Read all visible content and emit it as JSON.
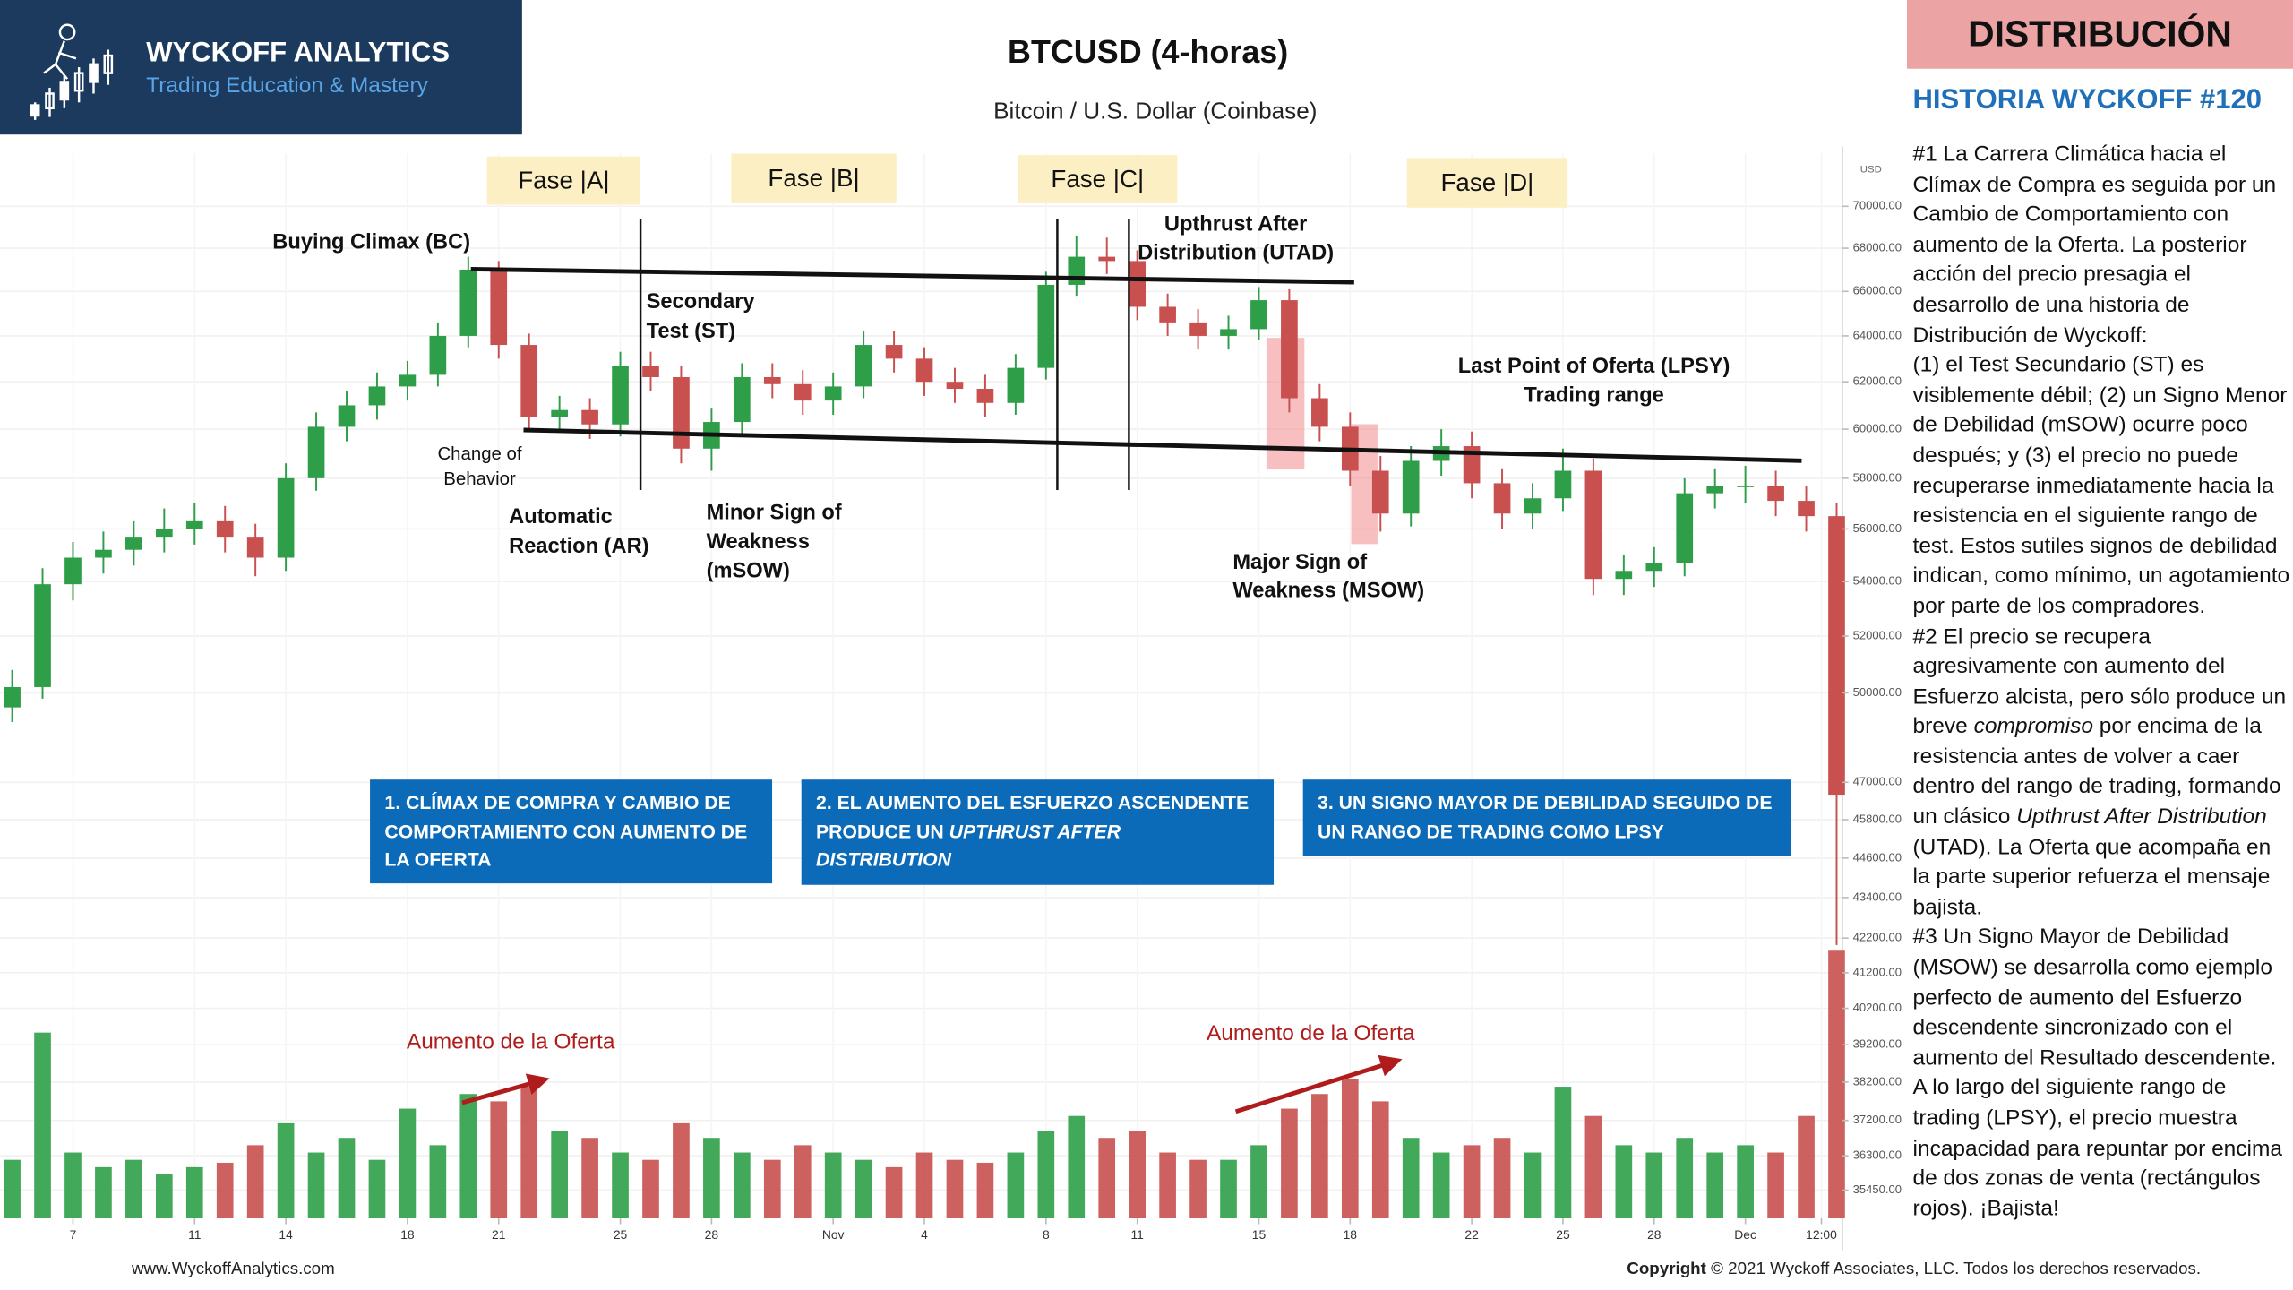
{
  "header": {
    "brand": "WYCKOFF ANALYTICS",
    "tagline": "Trading Education & Mastery",
    "title": "BTCUSD (4-horas)",
    "subtitle": "Bitcoin / U.S. Dollar (Coinbase)",
    "badge": "DISTRIBUCIÓN",
    "story_title": "HISTORIA WYCKOFF #120"
  },
  "chart_data": {
    "type": "candlestick",
    "x": [
      5,
      6,
      7,
      8,
      9,
      10,
      11,
      12,
      13,
      14,
      15,
      16,
      17,
      18,
      19,
      20,
      21,
      22,
      23,
      24,
      25,
      26,
      27,
      28,
      29,
      30,
      31,
      32,
      33,
      34,
      35,
      36,
      37,
      38,
      39,
      40,
      41,
      42,
      43,
      44,
      45,
      46,
      47,
      48,
      49,
      50,
      51,
      52,
      53,
      54,
      55,
      56,
      57,
      58,
      59,
      60,
      61,
      62,
      63,
      64,
      65
    ],
    "open": [
      49500,
      50200,
      53900,
      54900,
      55200,
      55700,
      56000,
      56300,
      55700,
      54900,
      58000,
      60100,
      61000,
      61800,
      62300,
      64000,
      67000,
      63600,
      60500,
      60800,
      60200,
      62700,
      62200,
      59200,
      60300,
      62200,
      61900,
      61200,
      61800,
      63600,
      63000,
      62000,
      61700,
      61100,
      62600,
      66300,
      67600,
      67400,
      65300,
      64600,
      64000,
      64300,
      65600,
      61300,
      60100,
      58300,
      56600,
      58700,
      59300,
      57800,
      56600,
      57200,
      58300,
      54100,
      54400,
      54700,
      57400,
      57700,
      57700,
      57100,
      56500
    ],
    "high": [
      50800,
      54500,
      55500,
      55900,
      56300,
      56800,
      57000,
      56900,
      56200,
      58600,
      60700,
      61600,
      62400,
      62900,
      64600,
      67600,
      67400,
      64100,
      61400,
      61300,
      63300,
      63300,
      62700,
      60900,
      62800,
      62800,
      62500,
      62400,
      64200,
      64200,
      63500,
      62600,
      62300,
      63200,
      66900,
      68600,
      68500,
      67900,
      65900,
      65200,
      64900,
      66200,
      66100,
      61900,
      60700,
      58900,
      59300,
      60000,
      59900,
      58400,
      57800,
      59200,
      58800,
      55000,
      55300,
      58000,
      58400,
      58500,
      58300,
      57700,
      57000
    ],
    "low": [
      49000,
      49800,
      53300,
      54300,
      54600,
      55100,
      55400,
      55100,
      54200,
      54400,
      57500,
      59500,
      60400,
      61200,
      61800,
      63500,
      63000,
      59900,
      59900,
      59600,
      59700,
      61600,
      58600,
      58300,
      59800,
      61300,
      60600,
      60600,
      61300,
      62400,
      61400,
      61100,
      60500,
      60600,
      62100,
      65800,
      66800,
      64700,
      64000,
      63400,
      63400,
      63800,
      60700,
      59500,
      57700,
      55900,
      56100,
      58100,
      57200,
      56000,
      56000,
      56700,
      53500,
      53500,
      53800,
      54200,
      56800,
      57000,
      56500,
      55900,
      42000
    ],
    "close": [
      50200,
      53900,
      54900,
      55200,
      55700,
      56000,
      56300,
      55700,
      54900,
      58000,
      60100,
      61000,
      61800,
      62300,
      64000,
      67000,
      63600,
      60500,
      60800,
      60200,
      62700,
      62200,
      59200,
      60300,
      62200,
      61900,
      61200,
      61800,
      63600,
      63000,
      62000,
      61700,
      61100,
      62600,
      66300,
      67600,
      67400,
      65300,
      64600,
      64000,
      64300,
      65600,
      61300,
      60100,
      58300,
      56600,
      58700,
      59300,
      57800,
      56600,
      57200,
      58300,
      54100,
      54400,
      54700,
      57400,
      57700,
      57700,
      57100,
      56500,
      46600
    ],
    "volume": [
      40,
      127,
      45,
      35,
      40,
      30,
      35,
      38,
      50,
      65,
      45,
      55,
      40,
      75,
      50,
      85,
      80,
      90,
      60,
      55,
      45,
      40,
      65,
      55,
      45,
      40,
      50,
      45,
      40,
      35,
      45,
      40,
      38,
      45,
      60,
      70,
      55,
      60,
      45,
      40,
      40,
      50,
      75,
      85,
      95,
      80,
      55,
      45,
      50,
      55,
      45,
      90,
      70,
      50,
      45,
      55,
      45,
      50,
      45,
      70,
      183
    ],
    "up_color": "#2e9e48",
    "down_color": "#c8504e",
    "yscale": "log",
    "y_unit": "USD",
    "ylim": [
      34800,
      72600
    ],
    "yticks": [
      {
        "value": 70000,
        "label": "70000.00"
      },
      {
        "value": 68000,
        "label": "68000.00"
      },
      {
        "value": 66000,
        "label": "66000.00"
      },
      {
        "value": 64000,
        "label": "64000.00"
      },
      {
        "value": 62000,
        "label": "62000.00"
      },
      {
        "value": 60000,
        "label": "60000.00"
      },
      {
        "value": 58000,
        "label": "58000.00"
      },
      {
        "value": 56000,
        "label": "56000.00"
      },
      {
        "value": 54000,
        "label": "54000.00"
      },
      {
        "value": 52000,
        "label": "52000.00"
      },
      {
        "value": 50000,
        "label": "50000.00"
      },
      {
        "value": 47000,
        "label": "47000.00"
      },
      {
        "value": 45800,
        "label": "45800.00"
      },
      {
        "value": 44600,
        "label": "44600.00"
      },
      {
        "value": 43400,
        "label": "43400.00"
      },
      {
        "value": 42200,
        "label": "42200.00"
      },
      {
        "value": 41200,
        "label": "41200.00"
      },
      {
        "value": 40200,
        "label": "40200.00"
      },
      {
        "value": 39200,
        "label": "39200.00"
      },
      {
        "value": 38200,
        "label": "38200.00"
      },
      {
        "value": 37200,
        "label": "37200.00"
      },
      {
        "value": 36300,
        "label": "36300.00"
      },
      {
        "value": 35450,
        "label": "35450.00"
      }
    ],
    "grid": true,
    "xlim": [
      4.6,
      65.1
    ],
    "xticks": [
      7,
      11,
      14,
      18,
      21,
      25,
      28,
      {
        "value": 32,
        "label": "Nov"
      },
      {
        "value": 35,
        "label": "4"
      },
      {
        "value": 39,
        "label": "8"
      },
      {
        "value": 42,
        "label": "11"
      },
      {
        "value": 46,
        "label": "15"
      },
      {
        "value": 49,
        "label": "18"
      },
      {
        "value": 53,
        "label": "22"
      },
      {
        "value": 56,
        "label": "25"
      },
      {
        "value": 59,
        "label": "28"
      },
      {
        "value": 62,
        "label": "Dec"
      },
      {
        "value": 64.5,
        "label": "12:00"
      }
    ],
    "phases": [
      "Fase |A|",
      "Fase |B|",
      "Fase |C|",
      "Fase |D|"
    ],
    "annotations": [
      [
        "Buying Climax (BC)"
      ],
      [
        "Change of",
        "Behavior"
      ],
      [
        "Secondary",
        "Test (ST)"
      ],
      [
        "Automatic",
        "Reaction (AR)"
      ],
      [
        "Minor Sign of",
        "Weakness",
        "(mSOW)"
      ],
      [
        "Upthrust After",
        "Distribution (UTAD)"
      ],
      [
        "Last Point of Oferta (LPSY)",
        "Trading range"
      ],
      [
        "Major Sign of",
        "Weakness (MSOW)"
      ]
    ],
    "notes": [
      [
        {
          "text": "1. CLÍMAX DE COMPRA Y CAMBIO DE COMPORTAMIENTO CON AUMENTO DE LA OFERTA"
        }
      ],
      [
        {
          "text": "2. EL AUMENTO DEL ESFUERZO ASCENDENTE PRODUCE UN "
        },
        {
          "text": "UPTHRUST AFTER DISTRIBUTION",
          "italic": true
        }
      ],
      [
        {
          "text": "3. UN SIGNO MAYOR DE DEBILIDAD SEGUIDO DE UN RANGO DE TRADING COMO LPSY"
        }
      ]
    ],
    "volume_notes": [
      "Aumento de la Oferta",
      "Aumento de la Oferta"
    ]
  },
  "story": {
    "paragraphs": [
      [
        {
          "text": "#1 La Carrera Climática hacia el Clímax de Compra es seguida por un Cambio de Comportamiento con aumento de la Oferta. La posterior acción del precio presagia el desarrollo de una historia de Distribución de Wyckoff:"
        }
      ],
      [
        {
          "text": "(1) el Test Secundario (ST) es visiblemente débil;  (2) un Signo Menor de Debilidad (mSOW) ocurre poco después; y (3) el precio no puede recuperarse inmediatamente hacia la resistencia en el siguiente rango de test. Estos sutiles signos de debilidad indican, como mínimo, un agotamiento por parte de los compradores."
        }
      ],
      [
        {
          "text": "#2 El precio se recupera agresivamente con aumento del Esfuerzo alcista, pero sólo produce un breve "
        },
        {
          "text": "compromiso",
          "italic": true
        },
        {
          "text": " por encima de la resistencia antes de volver a caer dentro del rango de trading, formando un clásico "
        },
        {
          "text": "Upthrust After Distribution",
          "italic": true
        },
        {
          "text": " (UTAD). La Oferta que acompaña en la parte superior refuerza el mensaje bajista."
        }
      ],
      [
        {
          "text": "#3 Un Signo Mayor de Debilidad (MSOW) se desarrolla como ejemplo perfecto de aumento del Esfuerzo descendente sincronizado con el aumento del Resultado descendente. A lo largo del siguiente rango de trading (LPSY), el precio muestra incapacidad para repuntar por encima de dos zonas de venta (rectángulos rojos). ¡Bajista!"
        }
      ]
    ]
  },
  "footer": {
    "site": "www.WyckoffAnalytics.com",
    "copyright_label": "Copyright",
    "copyright": " © 2021 Wyckoff Associates, LLC. Todos los derechos reservados."
  }
}
